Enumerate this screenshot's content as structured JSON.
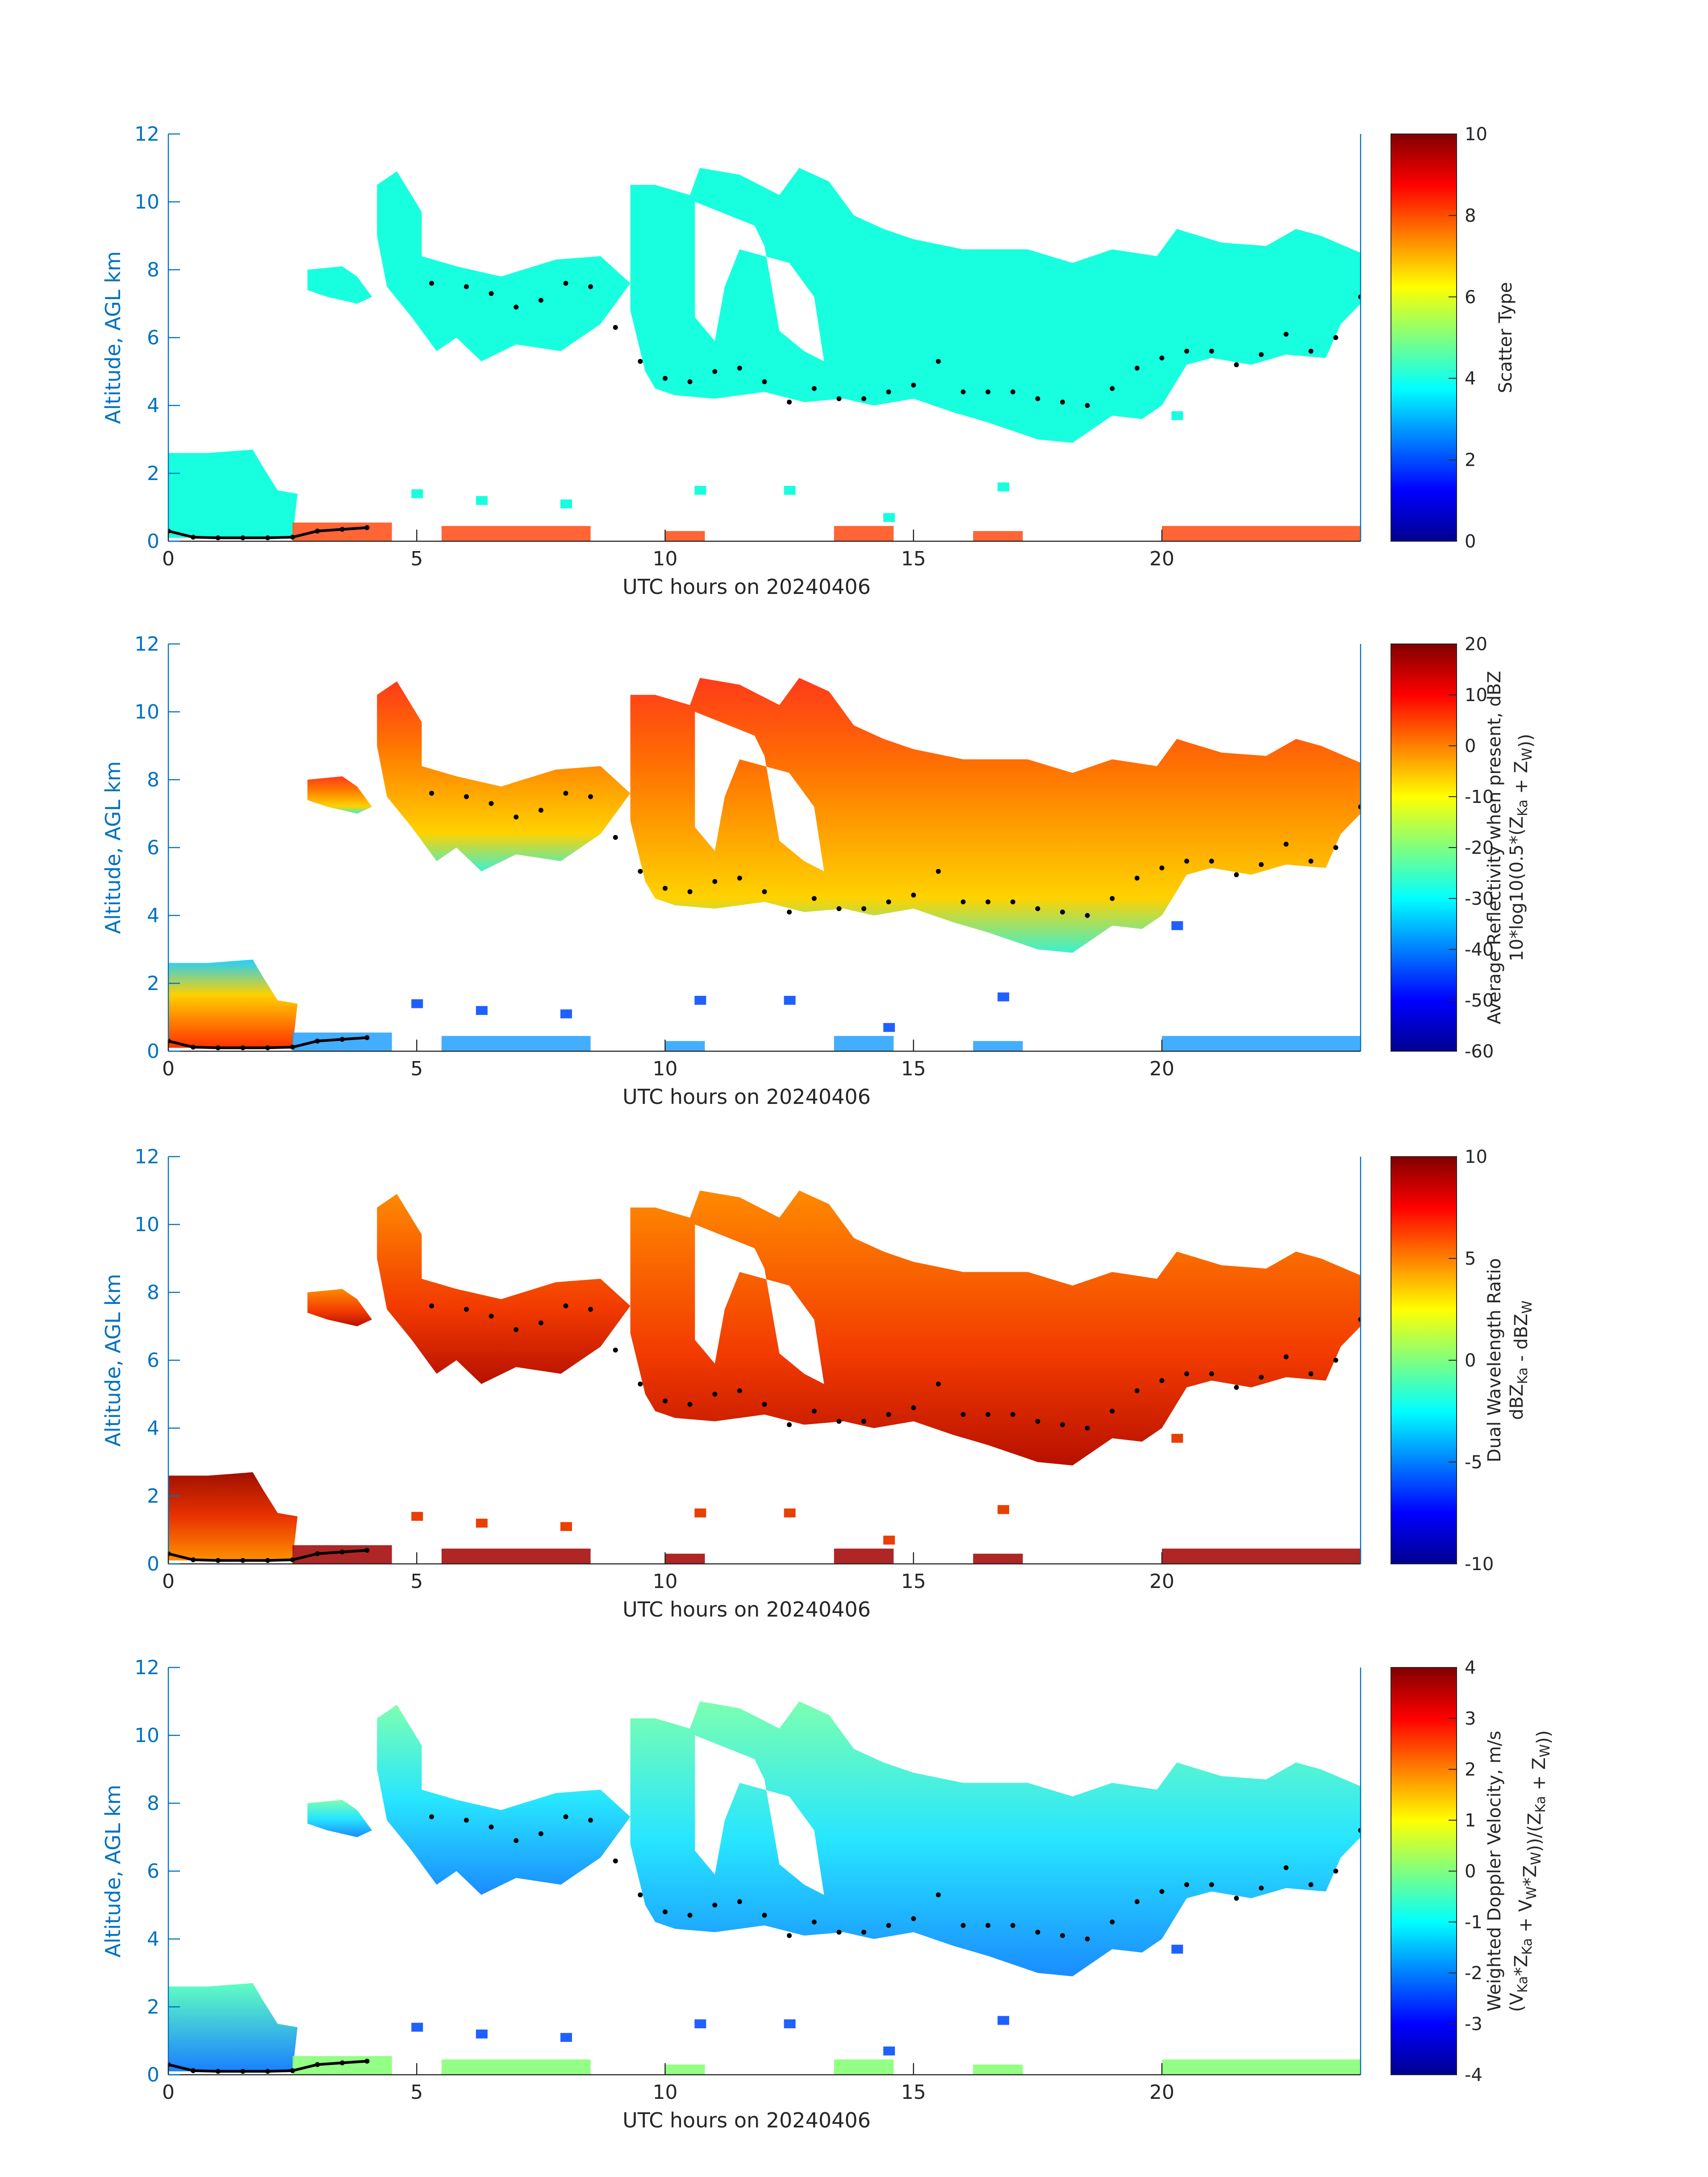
{
  "chart_data": [
    {
      "type": "heatmap",
      "id": "scatter",
      "xlabel": "UTC hours on 20240406",
      "ylabel": "Altitude, AGL km",
      "xlim": [
        0,
        24
      ],
      "ylim": [
        0,
        12
      ],
      "xticks": [
        "0",
        "5",
        "10",
        "15",
        "20"
      ],
      "yticks": [
        "0",
        "2",
        "4",
        "6",
        "8",
        "10",
        "12"
      ],
      "colorbar": {
        "label_lines": [
          "Scatter Type"
        ],
        "range": [
          0,
          10
        ],
        "ticks": [
          "0",
          "2",
          "4",
          "6",
          "8",
          "10"
        ]
      },
      "dominant_values": {
        "cloud_aloft": 4,
        "near_surface": 9
      }
    },
    {
      "type": "heatmap",
      "id": "reflectivity",
      "xlabel": "UTC hours on 20240406",
      "ylabel": "Altitude, AGL km",
      "xlim": [
        0,
        24
      ],
      "ylim": [
        0,
        12
      ],
      "xticks": [
        "0",
        "5",
        "10",
        "15",
        "20"
      ],
      "yticks": [
        "0",
        "2",
        "4",
        "6",
        "8",
        "10",
        "12"
      ],
      "colorbar": {
        "label_lines": [
          "Average Reflectivity when present, dBZ",
          "10*log10(0.5*(Z_Ka + Z_W))"
        ],
        "range": [
          -60,
          20
        ],
        "ticks": [
          "-60",
          "-50",
          "-40",
          "-30",
          "-20",
          "-10",
          "0",
          "10",
          "20"
        ]
      }
    },
    {
      "type": "heatmap",
      "id": "dwr",
      "xlabel": "UTC hours on 20240406",
      "ylabel": "Altitude, AGL km",
      "xlim": [
        0,
        24
      ],
      "ylim": [
        0,
        12
      ],
      "xticks": [
        "0",
        "5",
        "10",
        "15",
        "20"
      ],
      "yticks": [
        "0",
        "2",
        "4",
        "6",
        "8",
        "10",
        "12"
      ],
      "colorbar": {
        "label_lines": [
          "Dual Wavelength Ratio",
          "dBZ_Ka - dBZ_W"
        ],
        "range": [
          -10,
          10
        ],
        "ticks": [
          "-10",
          "-5",
          "0",
          "5",
          "10"
        ]
      }
    },
    {
      "type": "heatmap",
      "id": "doppler",
      "xlabel": "UTC hours on 20240406",
      "ylabel": "Altitude, AGL km",
      "xlim": [
        0,
        24
      ],
      "ylim": [
        0,
        12
      ],
      "xticks": [
        "0",
        "5",
        "10",
        "15",
        "20"
      ],
      "yticks": [
        "0",
        "2",
        "4",
        "6",
        "8",
        "10",
        "12"
      ],
      "colorbar": {
        "label_lines": [
          "Weighted Doppler Velocity, m/s",
          "(V_Ka*Z_Ka + V_W*Z_W))/(Z_Ka + Z_W))"
        ],
        "range": [
          -4,
          4
        ],
        "ticks": [
          "-4",
          "-3",
          "-2",
          "-1",
          "0",
          "1",
          "2",
          "3",
          "4"
        ]
      }
    }
  ],
  "cloud_regions": [
    {
      "name": "upper-cloud-main",
      "x": [
        9.3,
        24.0
      ],
      "top_km": [
        10.5,
        11.0,
        10.5,
        9.5,
        9.0,
        8.5
      ],
      "base_km": [
        6.5,
        4.3,
        4.2,
        3.7,
        2.8,
        5.0
      ]
    },
    {
      "name": "upper-cloud-early",
      "x": [
        2.8,
        9.3
      ],
      "top_km": [
        8.0,
        10.8
      ],
      "base_km": [
        7.0,
        5.0
      ]
    },
    {
      "name": "low-cloud",
      "x": [
        0,
        2.5
      ],
      "top_km": [
        2.7
      ],
      "base_km": [
        0
      ]
    }
  ],
  "cloud_base_markers": {
    "x": [
      0,
      0.5,
      1,
      1.5,
      2,
      2.5,
      3,
      3.5,
      4,
      5.3,
      6,
      6.5,
      7,
      7.5,
      8,
      8.5,
      9,
      9.5,
      10,
      10.5,
      11,
      11.5,
      12,
      12.5,
      13,
      13.5,
      14,
      14.5,
      15,
      15.5,
      16,
      16.5,
      17,
      17.5,
      18,
      18.5,
      19,
      19.5,
      20,
      20.5,
      21,
      21.5,
      22,
      22.5,
      23,
      23.5,
      24
    ],
    "y": [
      0.3,
      0.12,
      0.1,
      0.1,
      0.1,
      0.12,
      0.3,
      0.35,
      0.4,
      7.6,
      7.5,
      7.3,
      6.9,
      7.1,
      7.6,
      7.5,
      6.3,
      5.3,
      4.8,
      4.7,
      5.0,
      5.1,
      4.7,
      4.1,
      4.5,
      4.2,
      4.2,
      4.4,
      4.6,
      5.3,
      4.4,
      4.4,
      4.4,
      4.2,
      4.1,
      4.0,
      4.5,
      5.1,
      5.4,
      5.6,
      5.6,
      5.2,
      5.5,
      6.1,
      5.6,
      6.0,
      7.2
    ]
  }
}
